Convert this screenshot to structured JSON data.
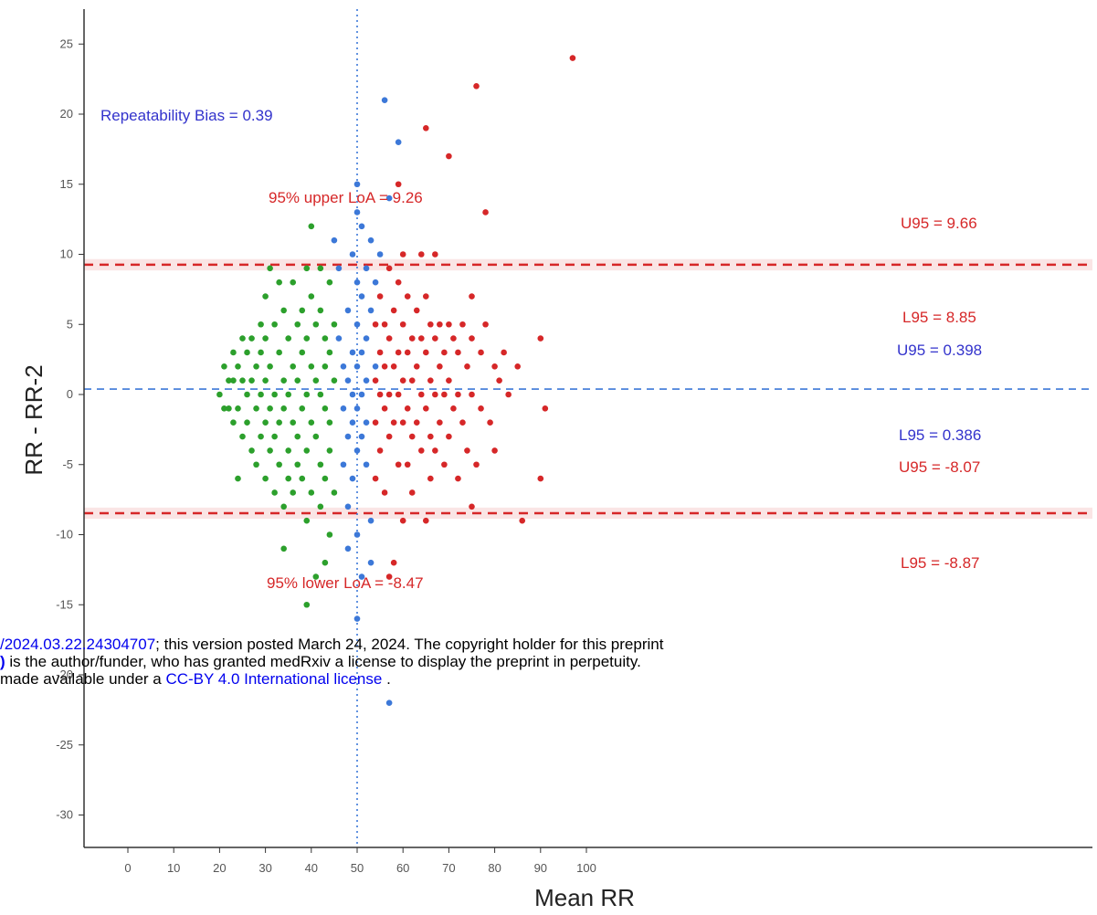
{
  "chart_data": {
    "type": "scatter",
    "title": "",
    "xlabel": "Mean RR",
    "ylabel": "RR - RR-2",
    "xlim": [
      -5,
      105
    ],
    "ylim": [
      -33,
      28
    ],
    "xticks": [
      "0",
      "10",
      "20",
      "30",
      "40",
      "50",
      "60",
      "70",
      "80",
      "90",
      "100"
    ],
    "yticks": [
      "25",
      "20",
      "15",
      "10",
      "5",
      "0",
      "-5",
      "-10",
      "-15",
      "-20",
      "-25",
      "-30"
    ],
    "colors": {
      "green": "#2ca02c",
      "blue": "#3c78d8",
      "red": "#d62728",
      "bias_text": "#3333cc"
    },
    "reference_lines": {
      "bias": 0.39,
      "upper_loa": 9.26,
      "lower_loa": -8.47,
      "vertical_x": 50
    },
    "annotations": {
      "bias": "Repeatability Bias = 0.39",
      "upper_loa": "95% upper LoA = 9.26",
      "lower_loa": "95% lower LoA = -8.47",
      "u95_upper": "U95 = 9.66",
      "l95_upper": "L95 = 8.85",
      "u95_bias": "U95 = 0.398",
      "l95_bias": "L95 = 0.386",
      "u95_lower": "U95 = -8.07",
      "l95_lower": "L95 = -8.87"
    },
    "series": [
      {
        "color": "green",
        "points": [
          [
            20,
            0
          ],
          [
            21,
            2
          ],
          [
            21,
            -1
          ],
          [
            22,
            1
          ],
          [
            22,
            -1
          ],
          [
            23,
            3
          ],
          [
            23,
            1
          ],
          [
            23,
            -2
          ],
          [
            24,
            2
          ],
          [
            24,
            -1
          ],
          [
            25,
            4
          ],
          [
            25,
            1
          ],
          [
            25,
            -3
          ],
          [
            26,
            3
          ],
          [
            26,
            0
          ],
          [
            26,
            -2
          ],
          [
            27,
            4
          ],
          [
            27,
            1
          ],
          [
            27,
            -4
          ],
          [
            28,
            2
          ],
          [
            28,
            -1
          ],
          [
            28,
            -5
          ],
          [
            29,
            5
          ],
          [
            29,
            3
          ],
          [
            29,
            0
          ],
          [
            29,
            -3
          ],
          [
            30,
            7
          ],
          [
            30,
            4
          ],
          [
            30,
            1
          ],
          [
            30,
            -2
          ],
          [
            30,
            -6
          ],
          [
            31,
            9
          ],
          [
            31,
            2
          ],
          [
            31,
            -1
          ],
          [
            31,
            -4
          ],
          [
            32,
            5
          ],
          [
            32,
            0
          ],
          [
            32,
            -3
          ],
          [
            32,
            -7
          ],
          [
            33,
            8
          ],
          [
            33,
            3
          ],
          [
            33,
            -2
          ],
          [
            33,
            -5
          ],
          [
            34,
            6
          ],
          [
            34,
            1
          ],
          [
            34,
            -1
          ],
          [
            34,
            -8
          ],
          [
            35,
            4
          ],
          [
            35,
            0
          ],
          [
            35,
            -4
          ],
          [
            35,
            -6
          ],
          [
            36,
            8
          ],
          [
            36,
            2
          ],
          [
            36,
            -2
          ],
          [
            36,
            -7
          ],
          [
            37,
            5
          ],
          [
            37,
            1
          ],
          [
            37,
            -3
          ],
          [
            37,
            -5
          ],
          [
            38,
            6
          ],
          [
            38,
            3
          ],
          [
            38,
            -1
          ],
          [
            38,
            -6
          ],
          [
            39,
            9
          ],
          [
            39,
            4
          ],
          [
            39,
            0
          ],
          [
            39,
            -4
          ],
          [
            39,
            -9
          ],
          [
            39,
            -15
          ],
          [
            40,
            12
          ],
          [
            40,
            7
          ],
          [
            40,
            2
          ],
          [
            40,
            -2
          ],
          [
            40,
            -7
          ],
          [
            41,
            5
          ],
          [
            41,
            1
          ],
          [
            41,
            -3
          ],
          [
            41,
            -13
          ],
          [
            42,
            9
          ],
          [
            42,
            6
          ],
          [
            42,
            0
          ],
          [
            42,
            -5
          ],
          [
            42,
            -8
          ],
          [
            43,
            4
          ],
          [
            43,
            2
          ],
          [
            43,
            -1
          ],
          [
            43,
            -6
          ],
          [
            43,
            -12
          ],
          [
            44,
            8
          ],
          [
            44,
            3
          ],
          [
            44,
            -2
          ],
          [
            44,
            -4
          ],
          [
            44,
            -10
          ],
          [
            45,
            5
          ],
          [
            45,
            1
          ],
          [
            45,
            -7
          ],
          [
            24,
            -6
          ],
          [
            34,
            -11
          ]
        ]
      },
      {
        "color": "blue",
        "points": [
          [
            45,
            11
          ],
          [
            46,
            9
          ],
          [
            46,
            4
          ],
          [
            47,
            2
          ],
          [
            47,
            -1
          ],
          [
            47,
            -5
          ],
          [
            48,
            6
          ],
          [
            48,
            1
          ],
          [
            48,
            -3
          ],
          [
            48,
            -8
          ],
          [
            48,
            -11
          ],
          [
            49,
            10
          ],
          [
            49,
            3
          ],
          [
            49,
            0
          ],
          [
            49,
            -2
          ],
          [
            49,
            -6
          ],
          [
            50,
            15
          ],
          [
            50,
            13
          ],
          [
            50,
            8
          ],
          [
            50,
            5
          ],
          [
            50,
            2
          ],
          [
            50,
            -1
          ],
          [
            50,
            -4
          ],
          [
            50,
            -10
          ],
          [
            50,
            -16
          ],
          [
            51,
            12
          ],
          [
            51,
            7
          ],
          [
            51,
            3
          ],
          [
            51,
            0
          ],
          [
            51,
            -3
          ],
          [
            51,
            -13
          ],
          [
            52,
            9
          ],
          [
            52,
            4
          ],
          [
            52,
            1
          ],
          [
            52,
            -2
          ],
          [
            52,
            -5
          ],
          [
            53,
            11
          ],
          [
            53,
            6
          ],
          [
            53,
            -9
          ],
          [
            53,
            -12
          ],
          [
            54,
            8
          ],
          [
            54,
            2
          ],
          [
            55,
            10
          ],
          [
            56,
            21
          ],
          [
            57,
            14
          ],
          [
            59,
            18
          ],
          [
            57,
            -22
          ]
        ]
      },
      {
        "color": "red",
        "points": [
          [
            54,
            5
          ],
          [
            54,
            1
          ],
          [
            54,
            -2
          ],
          [
            54,
            -6
          ],
          [
            55,
            7
          ],
          [
            55,
            3
          ],
          [
            55,
            0
          ],
          [
            55,
            -4
          ],
          [
            56,
            5
          ],
          [
            56,
            2
          ],
          [
            56,
            -1
          ],
          [
            56,
            -7
          ],
          [
            57,
            9
          ],
          [
            57,
            4
          ],
          [
            57,
            0
          ],
          [
            57,
            -3
          ],
          [
            57,
            -13
          ],
          [
            58,
            6
          ],
          [
            58,
            2
          ],
          [
            58,
            -2
          ],
          [
            58,
            -12
          ],
          [
            59,
            8
          ],
          [
            59,
            15
          ],
          [
            59,
            3
          ],
          [
            59,
            0
          ],
          [
            59,
            -5
          ],
          [
            60,
            10
          ],
          [
            60,
            5
          ],
          [
            60,
            1
          ],
          [
            60,
            -2
          ],
          [
            60,
            -9
          ],
          [
            61,
            7
          ],
          [
            61,
            3
          ],
          [
            61,
            -1
          ],
          [
            61,
            -5
          ],
          [
            62,
            4
          ],
          [
            62,
            1
          ],
          [
            62,
            -3
          ],
          [
            62,
            -7
          ],
          [
            63,
            6
          ],
          [
            63,
            2
          ],
          [
            63,
            -2
          ],
          [
            64,
            10
          ],
          [
            64,
            4
          ],
          [
            64,
            0
          ],
          [
            64,
            -4
          ],
          [
            65,
            19
          ],
          [
            65,
            7
          ],
          [
            65,
            3
          ],
          [
            65,
            -1
          ],
          [
            65,
            -9
          ],
          [
            66,
            5
          ],
          [
            66,
            1
          ],
          [
            66,
            -3
          ],
          [
            66,
            -6
          ],
          [
            67,
            10
          ],
          [
            67,
            4
          ],
          [
            67,
            0
          ],
          [
            67,
            -4
          ],
          [
            68,
            5
          ],
          [
            68,
            2
          ],
          [
            68,
            -2
          ],
          [
            69,
            3
          ],
          [
            69,
            0
          ],
          [
            69,
            -5
          ],
          [
            70,
            17
          ],
          [
            70,
            5
          ],
          [
            70,
            1
          ],
          [
            70,
            -3
          ],
          [
            71,
            4
          ],
          [
            71,
            -1
          ],
          [
            72,
            3
          ],
          [
            72,
            0
          ],
          [
            72,
            -6
          ],
          [
            73,
            5
          ],
          [
            73,
            -2
          ],
          [
            74,
            2
          ],
          [
            74,
            -4
          ],
          [
            75,
            7
          ],
          [
            75,
            4
          ],
          [
            75,
            0
          ],
          [
            75,
            -8
          ],
          [
            76,
            22
          ],
          [
            76,
            -5
          ],
          [
            77,
            3
          ],
          [
            77,
            -1
          ],
          [
            78,
            13
          ],
          [
            78,
            5
          ],
          [
            79,
            -2
          ],
          [
            80,
            2
          ],
          [
            80,
            -4
          ],
          [
            81,
            1
          ],
          [
            82,
            3
          ],
          [
            83,
            0
          ],
          [
            85,
            2
          ],
          [
            86,
            -9
          ],
          [
            90,
            4
          ],
          [
            90,
            -6
          ],
          [
            91,
            -1
          ],
          [
            97,
            24
          ]
        ]
      }
    ]
  },
  "preprint_notice": {
    "line1_link": "/2024.03.22.24304707",
    "line1_text": "; this version posted March 24, 2024. The copyright holder for this preprint",
    "line2_bold": ")",
    "line2_text": " is the author/funder, who has granted medRxiv a license to display the preprint in perpetuity.",
    "line3_text": "made available under a ",
    "line3_link": "CC-BY 4.0 International license",
    "line3_end": " ."
  }
}
